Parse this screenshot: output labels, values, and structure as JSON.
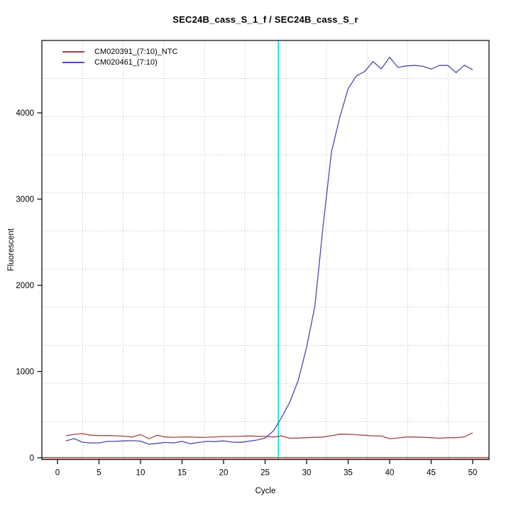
{
  "chart_data": {
    "type": "line",
    "title": "SEC24B_cass_S_1_f / SEC24B_cass_S_r",
    "xlabel": "Cycle",
    "ylabel": "Fluorescent",
    "x_ticks": [
      0,
      5,
      10,
      15,
      20,
      25,
      30,
      35,
      40,
      45,
      50
    ],
    "y_ticks": [
      0,
      1000,
      2000,
      3000,
      4000
    ],
    "xlim": [
      -2,
      52
    ],
    "ylim": [
      -20,
      4840
    ],
    "grid": {
      "nx": 11,
      "ny": 11,
      "color": "#bcbcbc",
      "style": "dotted"
    },
    "legend_position": "top-left",
    "x": [
      1,
      2,
      3,
      4,
      5,
      6,
      7,
      8,
      9,
      10,
      11,
      12,
      13,
      14,
      15,
      16,
      17,
      18,
      19,
      20,
      21,
      22,
      23,
      24,
      25,
      26,
      27,
      28,
      29,
      30,
      31,
      32,
      33,
      34,
      35,
      36,
      37,
      38,
      39,
      40,
      41,
      42,
      43,
      44,
      45,
      46,
      47,
      48,
      49,
      50
    ],
    "series": [
      {
        "name": "CM020391_(7:10)_NTC",
        "color": "#a04545",
        "values": [
          255,
          272,
          280,
          262,
          258,
          258,
          255,
          250,
          241,
          269,
          221,
          261,
          241,
          238,
          240,
          242,
          236,
          238,
          242,
          247,
          247,
          250,
          253,
          250,
          248,
          241,
          253,
          226,
          229,
          233,
          237,
          241,
          255,
          274,
          273,
          267,
          261,
          254,
          252,
          221,
          230,
          241,
          241,
          237,
          233,
          226,
          233,
          233,
          242,
          290
        ]
      },
      {
        "name": "CM020461_(7:10)",
        "color": "#4a4aaa",
        "values": [
          195,
          222,
          180,
          172,
          172,
          190,
          190,
          196,
          198,
          193,
          157,
          167,
          178,
          172,
          190,
          162,
          178,
          190,
          188,
          196,
          182,
          179,
          191,
          206,
          228,
          310,
          470,
          650,
          900,
          1280,
          1760,
          2700,
          3550,
          3950,
          4280,
          4430,
          4480,
          4595,
          4510,
          4645,
          4527,
          4545,
          4550,
          4540,
          4508,
          4550,
          4550,
          4466,
          4553,
          4500
        ]
      }
    ],
    "threshold_vline": {
      "x": 26.6,
      "color": "#00e0e0"
    },
    "zero_hline": {
      "y": 0,
      "color": "#c06a6a"
    }
  }
}
